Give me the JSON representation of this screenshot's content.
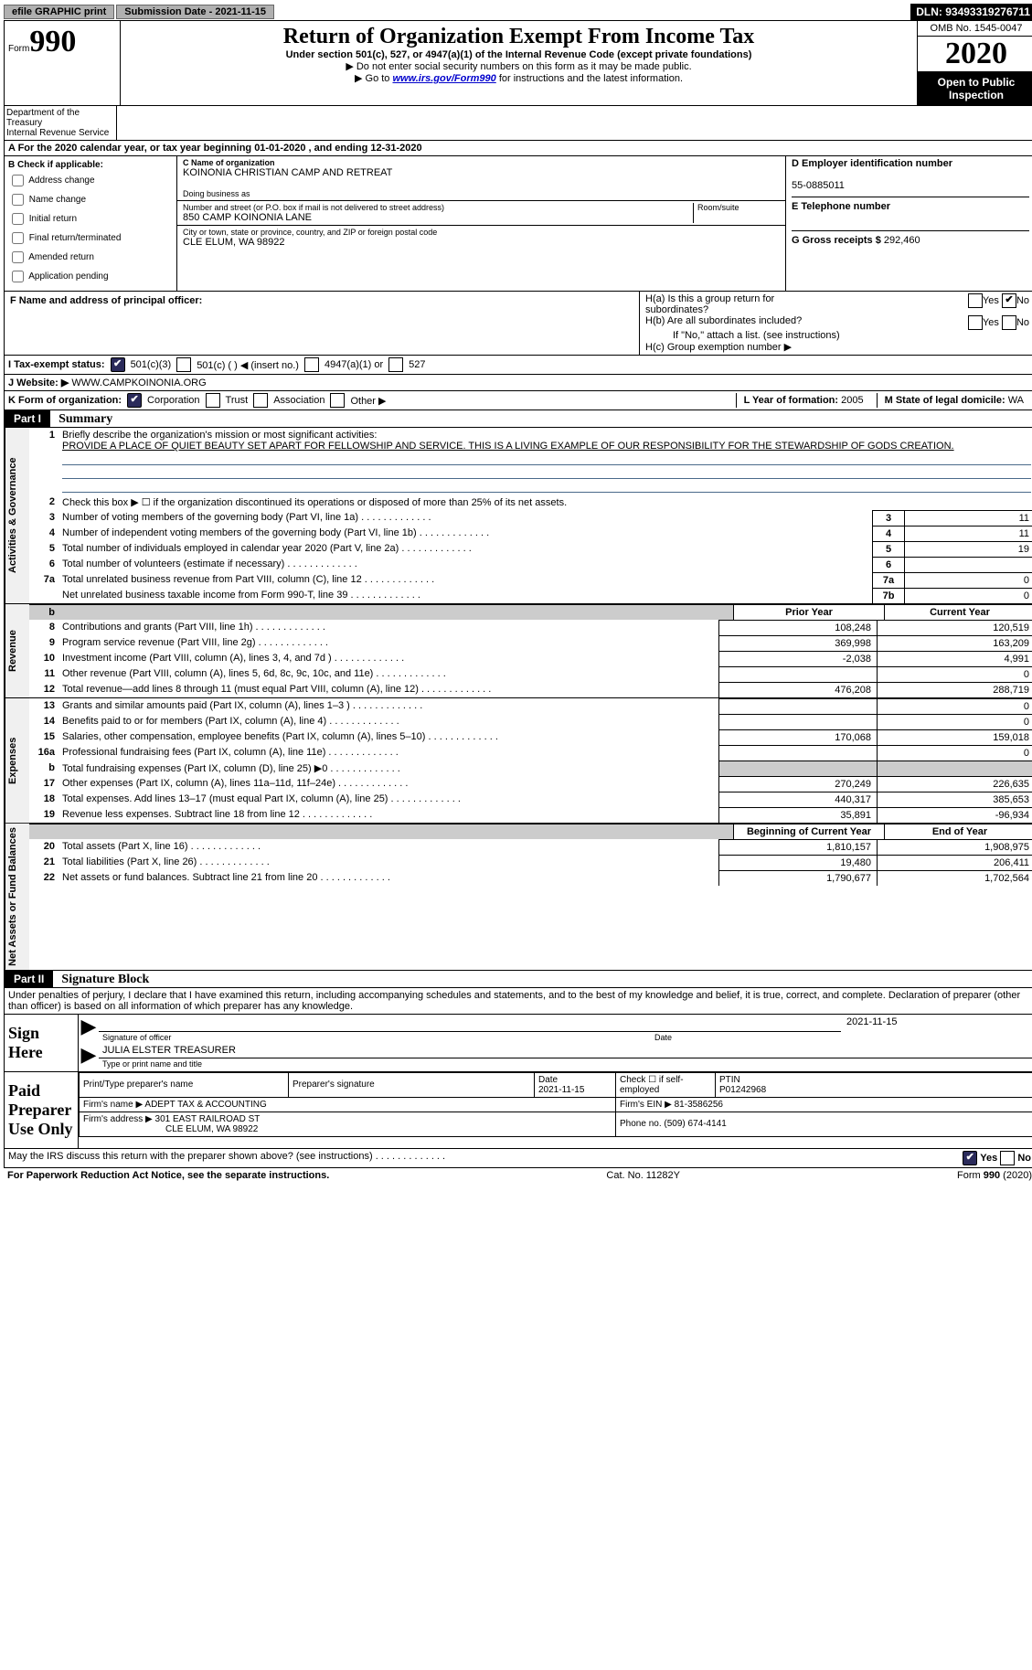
{
  "topbar": {
    "efile": "efile GRAPHIC print",
    "sub_lbl": "Submission Date - ",
    "sub_date": "2021-11-15",
    "dln_lbl": "DLN: ",
    "dln": "93493319276711"
  },
  "hdr": {
    "form_word": "Form",
    "form_num": "990",
    "title": "Return of Organization Exempt From Income Tax",
    "subtitle": "Under section 501(c), 527, or 4947(a)(1) of the Internal Revenue Code (except private foundations)",
    "note1": "▶ Do not enter social security numbers on this form as it may be made public.",
    "note2a": "▶ Go to ",
    "note2_link": "www.irs.gov/Form990",
    "note2b": " for instructions and the latest information.",
    "omb": "OMB No. 1545-0047",
    "year": "2020",
    "open": "Open to Public Inspection",
    "dept": "Department of the Treasury\nInternal Revenue Service"
  },
  "a_row": "A For the 2020 calendar year, or tax year beginning 01-01-2020   , and ending 12-31-2020",
  "b": {
    "hdr": "B Check if applicable:",
    "opts": [
      "Address change",
      "Name change",
      "Initial return",
      "Final return/terminated",
      "Amended return",
      "Application pending"
    ]
  },
  "c": {
    "lbl_name": "C Name of organization",
    "name": "KOINONIA CHRISTIAN CAMP AND RETREAT",
    "dba_lbl": "Doing business as",
    "addr_lbl": "Number and street (or P.O. box if mail is not delivered to street address)",
    "room_lbl": "Room/suite",
    "addr": "850 CAMP KOINONIA LANE",
    "city_lbl": "City or town, state or province, country, and ZIP or foreign postal code",
    "city": "CLE ELUM, WA  98922"
  },
  "d": {
    "lbl": "D Employer identification number",
    "val": "55-0885011"
  },
  "e": {
    "lbl": "E Telephone number"
  },
  "g": {
    "lbl": "G Gross receipts $",
    "val": "292,460"
  },
  "f": {
    "lbl": "F  Name and address of principal officer:"
  },
  "h": {
    "a": "H(a)  Is this a group return for\n        subordinates?",
    "b": "H(b)  Are all subordinates included?",
    "b2": "If \"No,\" attach a list. (see instructions)",
    "c": "H(c)  Group exemption number ▶",
    "yes": "Yes",
    "no": "No"
  },
  "i": {
    "lbl": "I   Tax-exempt status:",
    "o1": "501(c)(3)",
    "o2": "501(c) (  ) ◀ (insert no.)",
    "o3": "4947(a)(1) or",
    "o4": "527"
  },
  "j": {
    "lbl": "J   Website: ▶ ",
    "val": "WWW.CAMPKOINONIA.ORG"
  },
  "k": {
    "lbl": "K Form of organization:",
    "o1": "Corporation",
    "o2": "Trust",
    "o3": "Association",
    "o4": "Other ▶"
  },
  "l": {
    "lbl": "L Year of formation: ",
    "val": "2005"
  },
  "m": {
    "lbl": "M State of legal domicile: ",
    "val": "WA"
  },
  "p1": {
    "hdr": "Part I",
    "title": "Summary",
    "tab1": "Activities & Governance",
    "tab2": "Revenue",
    "tab3": "Expenses",
    "tab4": "Net Assets or Fund Balances",
    "l1_lbl": "Briefly describe the organization's mission or most significant activities:",
    "l1_val": "PROVIDE A PLACE OF QUIET BEAUTY SET APART FOR FELLOWSHIP AND SERVICE. THIS IS A LIVING EXAMPLE OF OUR RESPONSIBILITY FOR THE STEWARDSHIP OF GODS CREATION.",
    "l2": "Check this box ▶ ☐  if the organization discontinued its operations or disposed of more than 25% of its net assets.",
    "lines_gov": [
      {
        "n": "3",
        "t": "Number of voting members of the governing body (Part VI, line 1a)",
        "b": "3",
        "v": "11"
      },
      {
        "n": "4",
        "t": "Number of independent voting members of the governing body (Part VI, line 1b)",
        "b": "4",
        "v": "11"
      },
      {
        "n": "5",
        "t": "Total number of individuals employed in calendar year 2020 (Part V, line 2a)",
        "b": "5",
        "v": "19"
      },
      {
        "n": "6",
        "t": "Total number of volunteers (estimate if necessary)",
        "b": "6",
        "v": ""
      },
      {
        "n": "7a",
        "t": "Total unrelated business revenue from Part VIII, column (C), line 12",
        "b": "7a",
        "v": "0"
      },
      {
        "n": "",
        "t": "Net unrelated business taxable income from Form 990-T, line 39",
        "b": "7b",
        "v": "0"
      }
    ],
    "col_prior": "Prior Year",
    "col_curr": "Current Year",
    "lines_rev": [
      {
        "n": "8",
        "t": "Contributions and grants (Part VIII, line 1h)",
        "p": "108,248",
        "c": "120,519"
      },
      {
        "n": "9",
        "t": "Program service revenue (Part VIII, line 2g)",
        "p": "369,998",
        "c": "163,209"
      },
      {
        "n": "10",
        "t": "Investment income (Part VIII, column (A), lines 3, 4, and 7d )",
        "p": "-2,038",
        "c": "4,991"
      },
      {
        "n": "11",
        "t": "Other revenue (Part VIII, column (A), lines 5, 6d, 8c, 9c, 10c, and 11e)",
        "p": "",
        "c": "0"
      },
      {
        "n": "12",
        "t": "Total revenue—add lines 8 through 11 (must equal Part VIII, column (A), line 12)",
        "p": "476,208",
        "c": "288,719"
      }
    ],
    "lines_exp": [
      {
        "n": "13",
        "t": "Grants and similar amounts paid (Part IX, column (A), lines 1–3 )",
        "p": "",
        "c": "0"
      },
      {
        "n": "14",
        "t": "Benefits paid to or for members (Part IX, column (A), line 4)",
        "p": "",
        "c": "0"
      },
      {
        "n": "15",
        "t": "Salaries, other compensation, employee benefits (Part IX, column (A), lines 5–10)",
        "p": "170,068",
        "c": "159,018"
      },
      {
        "n": "16a",
        "t": "Professional fundraising fees (Part IX, column (A), line 11e)",
        "p": "",
        "c": "0"
      },
      {
        "n": "b",
        "t": "Total fundraising expenses (Part IX, column (D), line 25) ▶0",
        "p": "GRAY",
        "c": "GRAY"
      },
      {
        "n": "17",
        "t": "Other expenses (Part IX, column (A), lines 11a–11d, 11f–24e)",
        "p": "270,249",
        "c": "226,635"
      },
      {
        "n": "18",
        "t": "Total expenses. Add lines 13–17 (must equal Part IX, column (A), line 25)",
        "p": "440,317",
        "c": "385,653"
      },
      {
        "n": "19",
        "t": "Revenue less expenses. Subtract line 18 from line 12",
        "p": "35,891",
        "c": "-96,934"
      }
    ],
    "col_beg": "Beginning of Current Year",
    "col_end": "End of Year",
    "lines_net": [
      {
        "n": "20",
        "t": "Total assets (Part X, line 16)",
        "p": "1,810,157",
        "c": "1,908,975"
      },
      {
        "n": "21",
        "t": "Total liabilities (Part X, line 26)",
        "p": "19,480",
        "c": "206,411"
      },
      {
        "n": "22",
        "t": "Net assets or fund balances. Subtract line 21 from line 20",
        "p": "1,790,677",
        "c": "1,702,564"
      }
    ]
  },
  "p2": {
    "hdr": "Part II",
    "title": "Signature Block",
    "decl": "Under penalties of perjury, I declare that I have examined this return, including accompanying schedules and statements, and to the best of my knowledge and belief, it is true, correct, and complete. Declaration of preparer (other than officer) is based on all information of which preparer has any knowledge.",
    "sign_here": "Sign Here",
    "sig_officer": "Signature of officer",
    "sig_date": "2021-11-15",
    "date_lbl": "Date",
    "name_title": "JULIA ELSTER  TREASURER",
    "type_lbl": "Type or print name and title",
    "paid": "Paid Preparer Use Only",
    "pp_name_lbl": "Print/Type preparer's name",
    "pp_sig_lbl": "Preparer's signature",
    "pp_date_lbl": "Date",
    "pp_date": "2021-11-15",
    "pp_check": "Check ☐ if self-employed",
    "ptin_lbl": "PTIN",
    "ptin": "P01242968",
    "firm_name_lbl": "Firm's name    ▶",
    "firm_name": "ADEPT TAX & ACCOUNTING",
    "firm_ein_lbl": "Firm's EIN ▶",
    "firm_ein": "81-3586256",
    "firm_addr_lbl": "Firm's address ▶",
    "firm_addr": "301 EAST RAILROAD ST",
    "firm_city": "CLE ELUM, WA  98922",
    "phone_lbl": "Phone no.",
    "phone": "(509) 674-4141",
    "may_irs": "May the IRS discuss this return with the preparer shown above? (see instructions)",
    "yes": "Yes",
    "no": "No"
  },
  "ftr": {
    "left": "For Paperwork Reduction Act Notice, see the separate instructions.",
    "mid": "Cat. No. 11282Y",
    "right": "Form 990 (2020)"
  }
}
